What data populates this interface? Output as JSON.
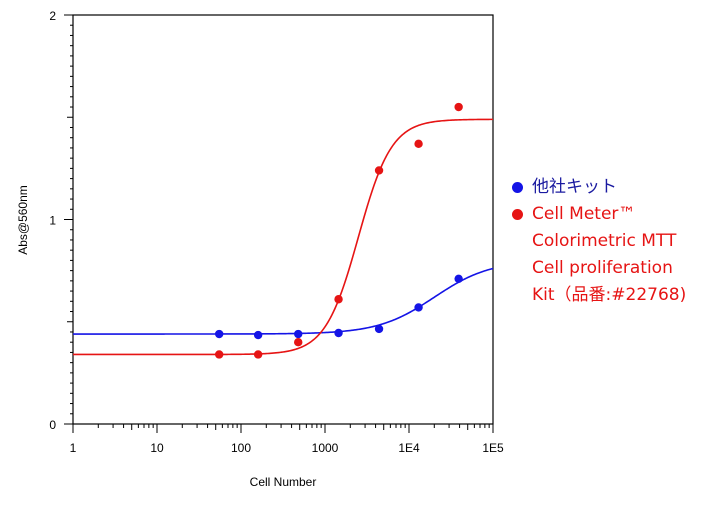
{
  "chart_data": {
    "type": "scatter",
    "xlabel": "Cell Number",
    "ylabel": "Abs@560nm",
    "x_scale": "log",
    "xlim": [
      1,
      100000
    ],
    "ylim": [
      0,
      2
    ],
    "x_ticks": [
      {
        "value": 1,
        "label": "1"
      },
      {
        "value": 10,
        "label": "10"
      },
      {
        "value": 100,
        "label": "100"
      },
      {
        "value": 1000,
        "label": "1000"
      },
      {
        "value": 10000,
        "label": "1E4"
      },
      {
        "value": 100000,
        "label": "1E5"
      }
    ],
    "y_ticks": [
      {
        "value": 0,
        "label": "0"
      },
      {
        "value": 1,
        "label": "1"
      },
      {
        "value": 2,
        "label": "2"
      }
    ],
    "grid": false,
    "legend_position": "right",
    "series": [
      {
        "name": "他社キット",
        "color": "#1414e6",
        "points": [
          {
            "x": 55,
            "y": 0.44
          },
          {
            "x": 160,
            "y": 0.435
          },
          {
            "x": 480,
            "y": 0.44
          },
          {
            "x": 1450,
            "y": 0.445
          },
          {
            "x": 4400,
            "y": 0.465
          },
          {
            "x": 13000,
            "y": 0.57
          },
          {
            "x": 39000,
            "y": 0.71
          }
        ],
        "fit": {
          "bottom": 0.44,
          "top": 0.8,
          "ec50": 20000,
          "hill": 1.3
        }
      },
      {
        "name": "Cell Meter™\nColorimetric MTT\nCell proliferation\nKit（品番:#22768)",
        "color": "#e61414",
        "points": [
          {
            "x": 55,
            "y": 0.34
          },
          {
            "x": 160,
            "y": 0.34
          },
          {
            "x": 480,
            "y": 0.4
          },
          {
            "x": 1450,
            "y": 0.61
          },
          {
            "x": 4400,
            "y": 1.24
          },
          {
            "x": 13000,
            "y": 1.37
          },
          {
            "x": 39000,
            "y": 1.55
          }
        ],
        "fit": {
          "bottom": 0.34,
          "top": 1.49,
          "ec50": 2500,
          "hill": 2.2
        }
      }
    ]
  }
}
